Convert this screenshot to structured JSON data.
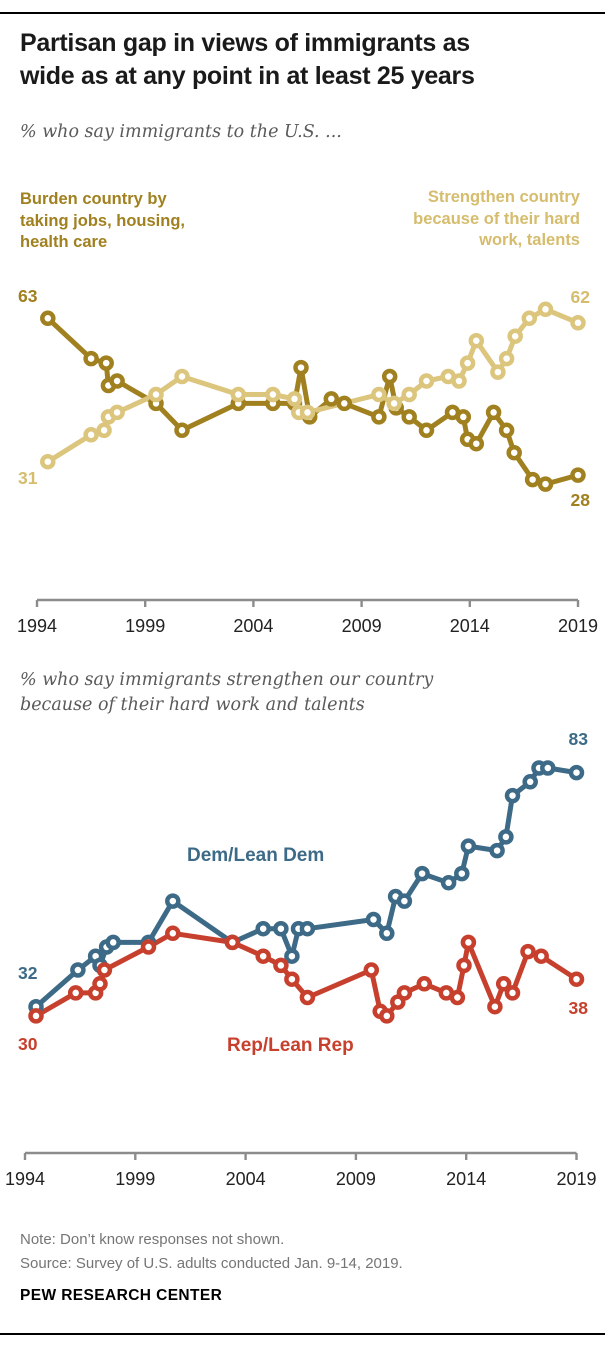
{
  "header": {
    "title_line1": "Partisan gap in views of immigrants as",
    "title_line2": "wide as at any point in at least 25 years"
  },
  "colors": {
    "burden": "#a0801f",
    "strengthen": "#dcc57c",
    "strengthen_text": "#d6bc6d",
    "dem": "#3d6a87",
    "rep": "#c7402d",
    "axis": "#8c8c8c"
  },
  "chart_data": [
    {
      "type": "line",
      "title": "% who say immigrants to the U.S. ...",
      "xlabel": "",
      "ylabel": "",
      "x_ticks": [
        1994,
        1999,
        2004,
        2009,
        2014,
        2019
      ],
      "xlim": [
        1994,
        2019
      ],
      "ylim": [
        20,
        70
      ],
      "grid": false,
      "legend_position": "labels-on-chart",
      "series": [
        {
          "name": "Burden country by taking jobs, housing, health care",
          "label": "Burden country by\ntaking jobs, housing,\nhealth care",
          "color": "#a0801f",
          "start_label": "63",
          "end_label": "28",
          "points": [
            [
              1994.5,
              63
            ],
            [
              1996.5,
              54
            ],
            [
              1997.2,
              53
            ],
            [
              1997.3,
              48
            ],
            [
              1997.7,
              49
            ],
            [
              1999.5,
              44
            ],
            [
              2000.7,
              38
            ],
            [
              2003.3,
              44
            ],
            [
              2004.9,
              44
            ],
            [
              2005.9,
              44
            ],
            [
              2006.2,
              52
            ],
            [
              2006.6,
              41
            ],
            [
              2007.6,
              45
            ],
            [
              2008.2,
              44
            ],
            [
              2009.8,
              41
            ],
            [
              2010.3,
              50
            ],
            [
              2010.6,
              43
            ],
            [
              2011.2,
              41
            ],
            [
              2012,
              38
            ],
            [
              2013.2,
              42
            ],
            [
              2013.7,
              41
            ],
            [
              2013.9,
              36
            ],
            [
              2014.3,
              35
            ],
            [
              2015.1,
              42
            ],
            [
              2015.7,
              38
            ],
            [
              2016.05,
              33
            ],
            [
              2016.9,
              27
            ],
            [
              2017.5,
              26
            ],
            [
              2019,
              28
            ]
          ]
        },
        {
          "name": "Strengthen country because of their hard work, talents",
          "label": "Strengthen country\nbecause of their hard\nwork, talents",
          "color": "#dcc57c",
          "start_label": "31",
          "end_label": "62",
          "points": [
            [
              1994.5,
              31
            ],
            [
              1996.5,
              37
            ],
            [
              1997.1,
              38
            ],
            [
              1997.3,
              41
            ],
            [
              1997.7,
              42
            ],
            [
              1999.5,
              46
            ],
            [
              2000.7,
              50
            ],
            [
              2003.3,
              46
            ],
            [
              2004.9,
              46
            ],
            [
              2005.9,
              45
            ],
            [
              2006.1,
              42
            ],
            [
              2006.5,
              42
            ],
            [
              2009.8,
              46
            ],
            [
              2010.5,
              44
            ],
            [
              2011.2,
              46
            ],
            [
              2012,
              49
            ],
            [
              2013,
              50
            ],
            [
              2013.5,
              49
            ],
            [
              2013.9,
              53
            ],
            [
              2014.3,
              58
            ],
            [
              2015.3,
              51
            ],
            [
              2015.7,
              54
            ],
            [
              2016.1,
              59
            ],
            [
              2016.75,
              63
            ],
            [
              2017.5,
              65
            ],
            [
              2019,
              62
            ]
          ]
        }
      ]
    },
    {
      "type": "line",
      "title": "% who say immigrants strengthen our country\nbecause of their hard work and talents",
      "xlabel": "",
      "ylabel": "",
      "x_ticks": [
        1994,
        1999,
        2004,
        2009,
        2014,
        2019
      ],
      "xlim": [
        1994,
        2019
      ],
      "ylim": [
        25,
        90
      ],
      "grid": false,
      "legend_position": "labels-on-chart",
      "series": [
        {
          "name": "Dem/Lean Dem",
          "label": "Dem/Lean Dem",
          "color": "#3d6a87",
          "start_label": "32",
          "end_label": "83",
          "points": [
            [
              1994.5,
              32
            ],
            [
              1996.4,
              40
            ],
            [
              1997.2,
              43
            ],
            [
              1997.4,
              41
            ],
            [
              1997.7,
              45
            ],
            [
              1998,
              46
            ],
            [
              1999.6,
              46
            ],
            [
              2000.7,
              55
            ],
            [
              2003.4,
              46
            ],
            [
              2004.8,
              49
            ],
            [
              2005.6,
              49
            ],
            [
              2006.1,
              43
            ],
            [
              2006.4,
              49
            ],
            [
              2006.8,
              49
            ],
            [
              2009.8,
              51
            ],
            [
              2010.4,
              48
            ],
            [
              2010.8,
              56
            ],
            [
              2011.2,
              55
            ],
            [
              2012,
              61
            ],
            [
              2013.2,
              59
            ],
            [
              2013.8,
              61
            ],
            [
              2014.1,
              67
            ],
            [
              2015.4,
              66
            ],
            [
              2015.8,
              69
            ],
            [
              2016.1,
              78
            ],
            [
              2016.9,
              81
            ],
            [
              2017.3,
              84
            ],
            [
              2017.7,
              84
            ],
            [
              2019,
              83
            ]
          ]
        },
        {
          "name": "Rep/Lean Rep",
          "label": "Rep/Lean Rep",
          "color": "#c7402d",
          "start_label": "30",
          "end_label": "38",
          "points": [
            [
              1994.5,
              30
            ],
            [
              1996.3,
              35
            ],
            [
              1997.2,
              35
            ],
            [
              1997.4,
              37
            ],
            [
              1997.6,
              40
            ],
            [
              1999.6,
              45
            ],
            [
              2000.7,
              48
            ],
            [
              2003.4,
              46
            ],
            [
              2004.8,
              43
            ],
            [
              2005.6,
              41
            ],
            [
              2006.1,
              38
            ],
            [
              2006.8,
              34
            ],
            [
              2009.7,
              40
            ],
            [
              2010.1,
              31
            ],
            [
              2010.4,
              30
            ],
            [
              2010.9,
              33
            ],
            [
              2011.2,
              35
            ],
            [
              2012.1,
              37
            ],
            [
              2013.1,
              35
            ],
            [
              2013.6,
              34
            ],
            [
              2013.9,
              41
            ],
            [
              2014.1,
              46
            ],
            [
              2015.3,
              32
            ],
            [
              2015.7,
              37
            ],
            [
              2016.1,
              35
            ],
            [
              2016.8,
              44
            ],
            [
              2017.4,
              43
            ],
            [
              2019,
              38
            ]
          ]
        }
      ]
    }
  ],
  "footer": {
    "note": "Note: Don’t know responses not shown.\nSource: Survey of U.S. adults conducted Jan. 9-14, 2019.",
    "brand": "PEW RESEARCH CENTER"
  }
}
